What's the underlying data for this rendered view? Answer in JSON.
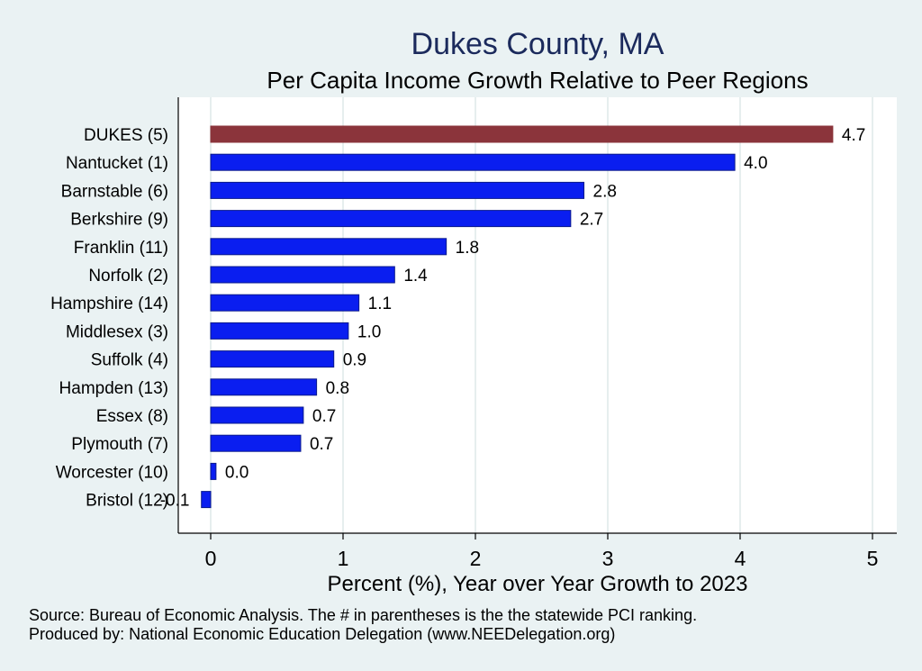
{
  "colors": {
    "background": "#eaf2f3",
    "plot_background": "#ffffff",
    "highlight_bar": "#8b343b",
    "bar": "#0a1ef0",
    "bar_outline": "#0b1a8c",
    "title": "#1b2a5c",
    "grid": "#e6eeee"
  },
  "notes": {
    "source": "Source: Bureau of Economic Analysis. The # in parentheses is the the statewide PCI ranking.",
    "produced_by": "Produced by: National Economic Education Delegation (www.NEEDelegation.org)"
  },
  "chart_data": {
    "type": "bar",
    "orientation": "horizontal",
    "title": "Dukes County, MA",
    "subtitle": "Per Capita Income Growth Relative to Peer Regions",
    "xlabel": "Percent (%), Year over Year Growth to 2023",
    "ylabel": "",
    "xlim": [
      -0.25,
      5.2
    ],
    "xticks": [
      0,
      1,
      2,
      3,
      4,
      5
    ],
    "grid": true,
    "categories": [
      "DUKES  (5)",
      "Nantucket  (1)",
      "Barnstable  (6)",
      "Berkshire  (9)",
      "Franklin (11)",
      "Norfolk  (2)",
      "Hampshire (14)",
      "Middlesex  (3)",
      "Suffolk  (4)",
      "Hampden (13)",
      "Essex  (8)",
      "Plymouth  (7)",
      "Worcester (10)",
      "Bristol (12)"
    ],
    "values": [
      4.7,
      3.96,
      2.82,
      2.72,
      1.78,
      1.39,
      1.12,
      1.04,
      0.93,
      0.8,
      0.7,
      0.68,
      0.04,
      -0.07
    ],
    "value_labels": [
      "4.7",
      "4.0",
      "2.8",
      "2.7",
      "1.8",
      "1.4",
      "1.1",
      "1.0",
      "0.9",
      "0.8",
      "0.7",
      "0.7",
      "0.0",
      "-0.1"
    ],
    "highlight_index": 0
  }
}
